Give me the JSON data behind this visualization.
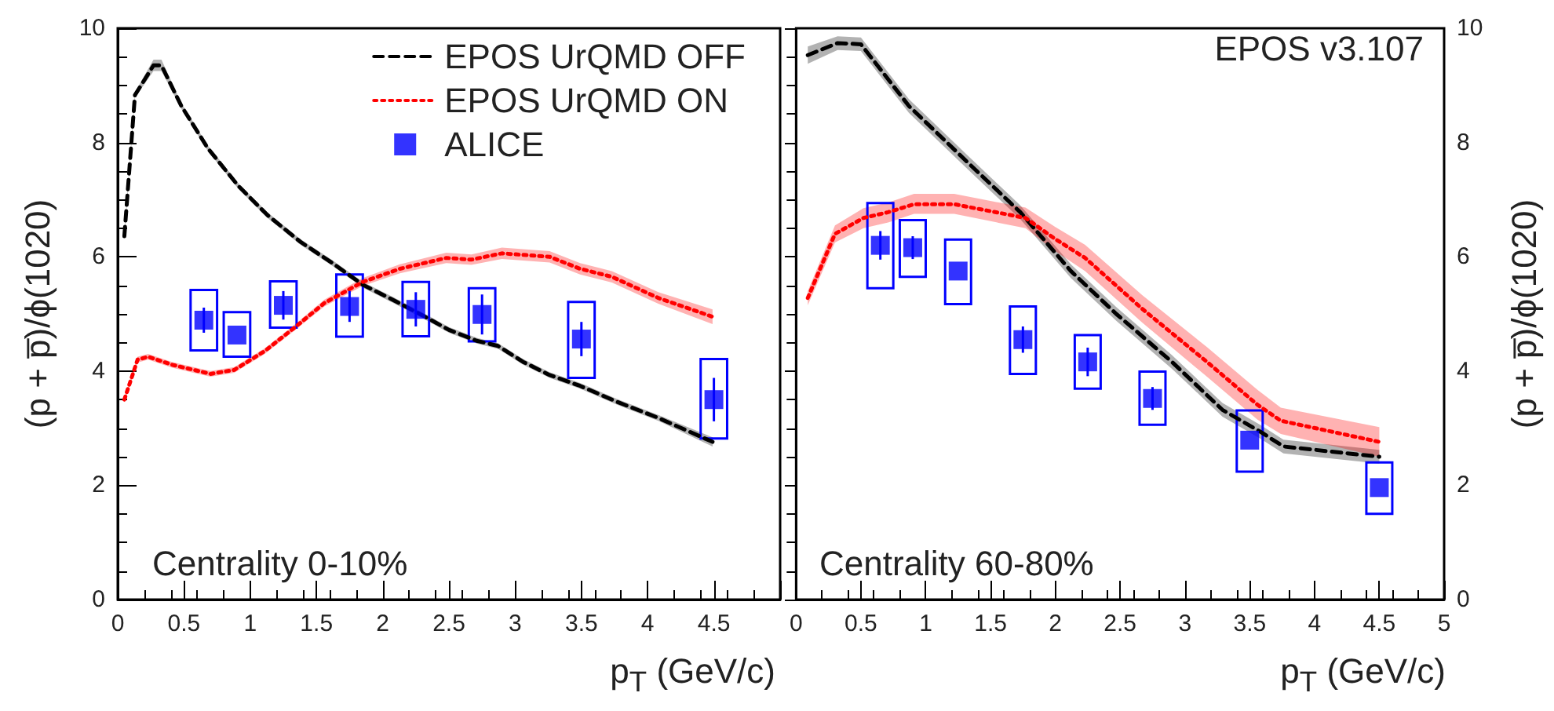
{
  "chart_data": [
    {
      "type": "line",
      "ylabel": "(p + p̅)/ϕ(1020)",
      "xlabel": "p$_{T}$ (GeV/c)",
      "xlim": [
        0,
        5
      ],
      "xticks": [
        0,
        0.5,
        1,
        1.5,
        2,
        2.5,
        3,
        3.5,
        4,
        4.5,
        {
          "value": 5,
          "label": null
        }
      ],
      "ylim": [
        0,
        10
      ],
      "yticks": [
        0,
        2,
        4,
        6,
        8,
        10
      ],
      "grid": false,
      "legend": "top right",
      "annotations": [
        "Centrality 0-10%"
      ],
      "series": [
        {
          "name": "EPOS UrQMD OFF",
          "color": "#000000",
          "line_style": "dashed",
          "marker": "none",
          "x": [
            0.05,
            0.13,
            0.27,
            0.33,
            0.48,
            0.68,
            0.91,
            1.13,
            1.38,
            1.62,
            1.85,
            2.09,
            2.32,
            2.5,
            2.71,
            2.87,
            3.06,
            3.26,
            3.49,
            3.77,
            4.08,
            4.49
          ],
          "values": [
            6.36,
            8.83,
            9.35,
            9.35,
            8.64,
            7.9,
            7.24,
            6.73,
            6.26,
            5.89,
            5.51,
            5.23,
            4.95,
            4.72,
            4.53,
            4.44,
            4.16,
            3.93,
            3.74,
            3.46,
            3.18,
            2.76
          ],
          "lower": [
            6.31,
            8.78,
            9.25,
            9.25,
            8.59,
            7.85,
            7.19,
            6.68,
            6.21,
            5.84,
            5.46,
            5.18,
            4.9,
            4.67,
            4.48,
            4.39,
            4.11,
            3.88,
            3.69,
            3.41,
            3.13,
            2.68
          ],
          "upper": [
            6.41,
            8.88,
            9.45,
            9.45,
            8.69,
            7.95,
            7.29,
            6.78,
            6.31,
            5.94,
            5.56,
            5.28,
            5.0,
            4.77,
            4.58,
            4.49,
            4.21,
            3.98,
            3.79,
            3.51,
            3.23,
            2.84
          ]
        },
        {
          "name": "EPOS UrQMD ON",
          "color": "#ff0000",
          "line_style": "dotted",
          "marker": "none",
          "x": [
            0.05,
            0.15,
            0.23,
            0.41,
            0.7,
            0.88,
            1.11,
            1.34,
            1.56,
            1.85,
            2.13,
            2.48,
            2.67,
            2.9,
            3.26,
            3.49,
            3.73,
            4.08,
            4.49
          ],
          "values": [
            3.5,
            4.2,
            4.25,
            4.11,
            3.95,
            4.02,
            4.35,
            4.77,
            5.19,
            5.56,
            5.79,
            5.98,
            5.95,
            6.06,
            6.0,
            5.79,
            5.65,
            5.28,
            4.95
          ],
          "lower": [
            3.45,
            4.15,
            4.2,
            4.06,
            3.9,
            3.97,
            4.3,
            4.72,
            5.13,
            5.49,
            5.71,
            5.89,
            5.86,
            5.96,
            5.9,
            5.69,
            5.55,
            5.18,
            4.82
          ],
          "upper": [
            3.55,
            4.25,
            4.3,
            4.16,
            4.0,
            4.07,
            4.4,
            4.82,
            5.25,
            5.63,
            5.87,
            6.07,
            6.04,
            6.16,
            6.1,
            5.89,
            5.75,
            5.38,
            5.08
          ]
        },
        {
          "type": "bar",
          "color": "#0000ff",
          "x": [
            0.65,
            0.9,
            1.25,
            1.75,
            2.25,
            2.75,
            3.5,
            4.5
          ],
          "base": [
            4.36,
            4.25,
            4.76,
            4.6,
            4.61,
            4.52,
            3.88,
            2.82
          ],
          "values": [
            1.06,
            0.78,
            0.81,
            1.09,
            0.95,
            0.93,
            1.33,
            1.39
          ]
        },
        {
          "name": "ALICE",
          "type": "scatter",
          "color": "#0000ff",
          "marker": "square",
          "x": [
            0.65,
            0.9,
            1.25,
            1.75,
            2.25,
            2.75,
            3.5,
            4.5
          ],
          "values": [
            4.89,
            4.63,
            5.15,
            5.13,
            5.08,
            4.99,
            4.56,
            3.5
          ],
          "errors": [
            0.22,
            null,
            0.25,
            0.27,
            0.3,
            0.35,
            0.3,
            0.38
          ]
        }
      ]
    },
    {
      "type": "line",
      "ylabel": "(p + p̅)/ϕ(1020)",
      "xlabel": "p$_{T}$ (GeV/c)",
      "xlim": [
        0,
        5
      ],
      "xticks": [
        0,
        0.5,
        1,
        1.5,
        2,
        2.5,
        3,
        3.5,
        4,
        4.5,
        5
      ],
      "ylim": [
        0,
        10
      ],
      "yticks": [
        0,
        2,
        4,
        6,
        8,
        10
      ],
      "grid": false,
      "annotations": [
        "EPOS v3.107",
        "Centrality 60-80%"
      ],
      "series": [
        {
          "color": "#000000",
          "line_style": "dashed",
          "marker": "none",
          "x": [
            0.09,
            0.32,
            0.5,
            0.87,
            1.32,
            1.73,
            2.12,
            2.47,
            2.9,
            3.29,
            3.58,
            3.76,
            4.5
          ],
          "values": [
            9.53,
            9.74,
            9.72,
            8.64,
            7.66,
            6.78,
            5.75,
            5.0,
            4.16,
            3.32,
            2.94,
            2.68,
            2.5
          ],
          "lower": [
            9.38,
            9.62,
            9.6,
            8.52,
            7.54,
            6.66,
            5.63,
            4.88,
            4.04,
            3.2,
            2.82,
            2.56,
            2.38
          ],
          "upper": [
            9.68,
            9.86,
            9.84,
            8.76,
            7.78,
            6.9,
            5.87,
            5.12,
            4.28,
            3.44,
            3.06,
            2.8,
            2.62
          ]
        },
        {
          "color": "#ff0000",
          "line_style": "dotted",
          "marker": "none",
          "x": [
            0.09,
            0.3,
            0.52,
            0.71,
            0.91,
            1.22,
            1.77,
            2.0,
            2.23,
            2.67,
            3.17,
            3.56,
            3.74,
            4.5
          ],
          "values": [
            5.28,
            6.4,
            6.68,
            6.78,
            6.92,
            6.92,
            6.68,
            6.31,
            5.98,
            5.09,
            4.16,
            3.41,
            3.13,
            2.76
          ],
          "lower": [
            5.15,
            6.25,
            6.5,
            6.6,
            6.75,
            6.75,
            6.5,
            6.1,
            5.75,
            4.85,
            3.9,
            3.15,
            2.9,
            2.5
          ],
          "upper": [
            5.4,
            6.55,
            6.85,
            6.95,
            7.1,
            7.1,
            6.86,
            6.52,
            6.21,
            5.33,
            4.42,
            3.67,
            3.36,
            3.02
          ]
        },
        {
          "type": "bar",
          "color": "#0000ff",
          "x": [
            0.65,
            0.9,
            1.25,
            1.75,
            2.25,
            2.75,
            3.5,
            4.5
          ],
          "base": [
            5.45,
            5.65,
            5.17,
            3.95,
            3.69,
            3.06,
            2.24,
            1.5
          ],
          "values": [
            1.49,
            0.99,
            1.13,
            1.18,
            0.94,
            0.93,
            1.07,
            0.9
          ]
        },
        {
          "type": "scatter",
          "color": "#0000ff",
          "marker": "square",
          "x": [
            0.65,
            0.9,
            1.25,
            1.75,
            2.25,
            2.75,
            3.5,
            4.5
          ],
          "values": [
            6.2,
            6.16,
            5.75,
            4.55,
            4.16,
            3.52,
            2.79,
            1.96
          ],
          "errors": [
            0.25,
            0.2,
            null,
            0.23,
            0.25,
            0.2,
            null,
            null
          ]
        }
      ]
    }
  ]
}
